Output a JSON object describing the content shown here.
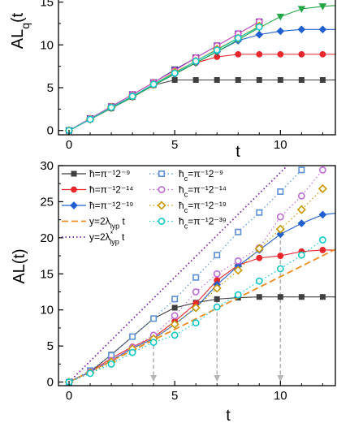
{
  "chart_data": [
    {
      "type": "line",
      "ylabel": "AL_q(t",
      "xlabel": "t",
      "xlim": [
        -0.5,
        12.6
      ],
      "ylim": [
        -0.5,
        16
      ],
      "x_ticks": [
        "0",
        "5",
        "10"
      ],
      "y_ticks": [
        "0",
        "5",
        "10",
        "15"
      ],
      "series": [
        {
          "marker": "square",
          "color": "#3f3f3f",
          "x": [
            0,
            1,
            2,
            3,
            4,
            5,
            6,
            7,
            8,
            9,
            10,
            11,
            12,
            12.6
          ],
          "y": [
            0,
            1.3,
            2.6,
            3.9,
            5.3,
            5.9,
            5.9,
            5.9,
            5.9,
            5.9,
            5.9,
            5.9,
            5.9,
            5.9
          ]
        },
        {
          "marker": "circle",
          "color": "#e8262b",
          "x": [
            0,
            1,
            2,
            3,
            4,
            5,
            6,
            7,
            8,
            9,
            10,
            11,
            12,
            12.6
          ],
          "y": [
            0,
            1.3,
            2.6,
            3.9,
            5.3,
            6.6,
            7.9,
            8.6,
            8.9,
            8.9,
            8.9,
            8.9,
            8.9,
            8.9
          ]
        },
        {
          "marker": "diamond",
          "color": "#1f5fd0",
          "x": [
            0,
            1,
            2,
            3,
            4,
            5,
            6,
            7,
            8,
            9,
            10,
            11,
            12,
            12.6
          ],
          "y": [
            0,
            1.3,
            2.6,
            3.9,
            5.3,
            6.6,
            7.9,
            9.2,
            10.5,
            11.2,
            11.6,
            11.8,
            11.8,
            11.8
          ]
        },
        {
          "marker": "triangle-down",
          "color": "#21a645",
          "x": [
            0,
            1,
            2,
            3,
            4,
            5,
            6,
            7,
            8,
            9,
            10,
            11,
            12,
            12.6
          ],
          "y": [
            0,
            1.3,
            2.6,
            3.9,
            5.3,
            6.6,
            7.9,
            9.2,
            10.6,
            12.0,
            13.3,
            14.2,
            14.5,
            14.6
          ]
        },
        {
          "marker": "square-open",
          "color": "#2f3a8a",
          "x": [
            0,
            1,
            2,
            3,
            4,
            5,
            6,
            7,
            8,
            9
          ],
          "y": [
            0,
            1.4,
            2.8,
            4.2,
            5.6,
            7.1,
            8.5,
            9.9,
            11.3,
            12.7
          ]
        },
        {
          "marker": "circle-open",
          "color": "#d24fc6",
          "x": [
            0,
            1,
            2,
            3,
            4,
            5,
            6,
            7,
            8,
            9
          ],
          "y": [
            0,
            1.4,
            2.8,
            4.2,
            5.6,
            7.0,
            8.5,
            9.9,
            11.3,
            12.7
          ]
        },
        {
          "marker": "diamond-open",
          "color": "#c79a00",
          "x": [
            0,
            1,
            2,
            3,
            4,
            5,
            6,
            7,
            8,
            9
          ],
          "y": [
            0,
            1.3,
            2.7,
            4.0,
            5.4,
            6.8,
            8.1,
            9.5,
            10.8,
            12.2
          ]
        },
        {
          "marker": "circle-open",
          "color": "#10c8c8",
          "x": [
            0,
            1,
            2,
            3,
            4,
            5,
            6,
            7,
            8,
            9
          ],
          "y": [
            0,
            1.3,
            2.7,
            4.0,
            5.4,
            6.7,
            8.1,
            9.4,
            10.8,
            12.1
          ]
        }
      ]
    },
    {
      "type": "line",
      "ylabel": "AL(t)",
      "xlabel": "t",
      "xlim": [
        -0.5,
        12.6
      ],
      "ylim": [
        -0.5,
        30
      ],
      "x_ticks": [
        "0",
        "5",
        "10"
      ],
      "y_ticks": [
        "0",
        "5",
        "10",
        "15",
        "20",
        "25",
        "30"
      ],
      "legend_position": "top-left",
      "series": [
        {
          "name": "ħ=π⁻¹2⁻⁹",
          "marker": "square",
          "color": "#3f3f3f",
          "line": "solid",
          "x": [
            0,
            1,
            2,
            3,
            4,
            5,
            6,
            7,
            8,
            9,
            10,
            11,
            12,
            12.6
          ],
          "y": [
            0,
            1.4,
            3.8,
            6.3,
            8.8,
            10.3,
            11.0,
            11.5,
            11.7,
            11.8,
            11.8,
            11.8,
            11.8,
            11.8
          ]
        },
        {
          "name": "ħ=π⁻¹2⁻¹⁴",
          "marker": "circle",
          "color": "#e8262b",
          "line": "solid",
          "x": [
            0,
            1,
            2,
            3,
            4,
            5,
            6,
            7,
            8,
            9,
            10,
            11,
            12,
            12.6
          ],
          "y": [
            0,
            1.4,
            3.3,
            4.9,
            6.2,
            8.4,
            10.9,
            14.1,
            16.2,
            17.2,
            17.5,
            18.1,
            18.3,
            18.3
          ]
        },
        {
          "name": "ħ=π⁻¹2⁻¹⁹",
          "marker": "diamond",
          "color": "#1f5fd0",
          "line": "solid",
          "x": [
            0,
            1,
            2,
            3,
            4,
            5,
            6,
            7,
            8,
            9,
            10,
            11,
            12,
            12.6
          ],
          "y": [
            0,
            1.4,
            3.0,
            4.7,
            6.0,
            8.0,
            10.3,
            13.5,
            16.1,
            18.3,
            20.5,
            22.0,
            23.2,
            23.4
          ]
        },
        {
          "name": "y=2λ_lyp t",
          "marker": "none",
          "color": "#f08c22",
          "line": "dashed",
          "x": [
            0,
            12.6
          ],
          "y": [
            0,
            18.4
          ]
        },
        {
          "name": "y=2λ*_lyp t",
          "marker": "none",
          "color": "#7a1fa8",
          "line": "dotted",
          "x": [
            0,
            10.5
          ],
          "y": [
            0,
            30.5
          ]
        },
        {
          "name": "ħ_c=π⁻¹2⁻⁹",
          "marker": "square-open",
          "color": "#5b8fd6",
          "line": "dotted",
          "x": [
            0,
            1,
            2,
            3,
            4,
            5,
            6,
            7,
            8,
            9,
            10,
            11
          ],
          "y": [
            0,
            1.6,
            3.7,
            6.3,
            8.8,
            11.5,
            14.5,
            17.6,
            20.8,
            23.5,
            26.4,
            29.4
          ]
        },
        {
          "name": "ħ_c=π⁻¹2⁻¹⁴",
          "marker": "circle-open",
          "color": "#c06ad8",
          "line": "dotted",
          "x": [
            0,
            1,
            2,
            3,
            4,
            5,
            6,
            7,
            8,
            9,
            10,
            11,
            12
          ],
          "y": [
            0,
            1.4,
            3.0,
            4.8,
            6.5,
            9.2,
            12.5,
            15.0,
            16.8,
            18.6,
            22.9,
            25.8,
            29.4
          ]
        },
        {
          "name": "ħ_c=π⁻¹2⁻¹⁹",
          "marker": "diamond-open",
          "color": "#c79a00",
          "line": "dotted",
          "x": [
            0,
            1,
            2,
            3,
            4,
            5,
            6,
            7,
            8,
            9,
            10,
            11,
            12
          ],
          "y": [
            0,
            1.3,
            2.8,
            4.6,
            6.0,
            8.0,
            10.3,
            13.0,
            15.5,
            18.5,
            21.2,
            23.9,
            26.8
          ]
        },
        {
          "name": "ħ_c=π⁻¹2⁻³⁹",
          "marker": "circle-open",
          "color": "#10c8c8",
          "line": "dotted",
          "x": [
            0,
            1,
            2,
            3,
            4,
            5,
            6,
            7,
            8,
            9,
            10,
            11,
            12
          ],
          "y": [
            0,
            1.2,
            2.5,
            4.1,
            5.5,
            6.5,
            8.2,
            10.4,
            12.1,
            14.0,
            15.7,
            17.6,
            19.7
          ]
        }
      ],
      "annotations": [
        {
          "type": "arrow",
          "x": 4,
          "from_y": 6.0,
          "to_y": -0.5,
          "color": "#b5b5b5"
        },
        {
          "type": "arrow",
          "x": 7,
          "from_y": 11.5,
          "to_y": -0.5,
          "color": "#b5b5b5"
        },
        {
          "type": "arrow",
          "x": 10,
          "from_y": 20.5,
          "to_y": -0.5,
          "color": "#b5b5b5"
        }
      ]
    }
  ]
}
